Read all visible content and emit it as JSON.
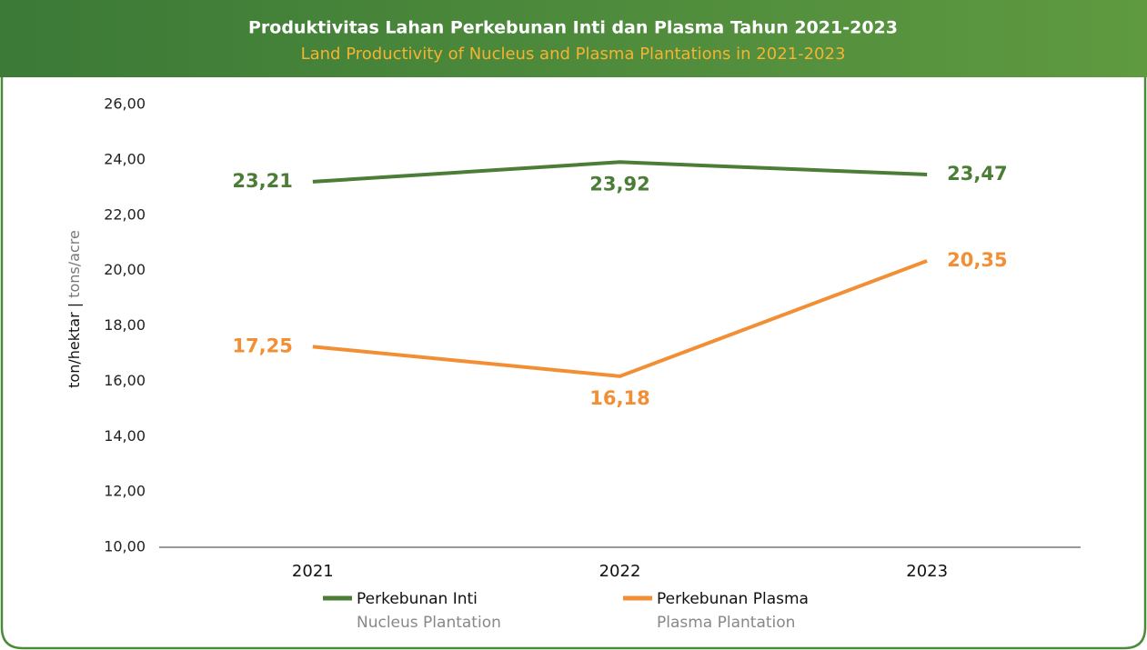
{
  "chart_data": {
    "type": "line",
    "title": "Produktivitas Lahan Perkebunan Inti dan Plasma Tahun 2021-2023",
    "subtitle": "Land Productivity of Nucleus and Plasma Plantations in 2021-2023",
    "y_label": "ton/hektar",
    "y_label_separator": "|",
    "y_label_en": "tons/acre",
    "categories": [
      "2021",
      "2022",
      "2023"
    ],
    "series": [
      {
        "name": "Perkebunan Inti",
        "name_en": "Nucleus Plantation",
        "color": "#4b7d36",
        "values": [
          23.21,
          23.92,
          23.47
        ],
        "value_labels": [
          "23,21",
          "23,92",
          "23,47"
        ]
      },
      {
        "name": "Perkebunan Plasma",
        "name_en": "Plasma Plantation",
        "color": "#f28f35",
        "values": [
          17.25,
          16.18,
          20.35
        ],
        "value_labels": [
          "17,25",
          "16,18",
          "20,35"
        ]
      }
    ],
    "ylim": [
      10,
      26
    ],
    "yticks": [
      {
        "value": 10,
        "label": "10,00"
      },
      {
        "value": 12,
        "label": "12,00"
      },
      {
        "value": 14,
        "label": "14,00"
      },
      {
        "value": 16,
        "label": "16,00"
      },
      {
        "value": 18,
        "label": "18,00"
      },
      {
        "value": 20,
        "label": "20,00"
      },
      {
        "value": 22,
        "label": "22,00"
      },
      {
        "value": 24,
        "label": "24,00"
      },
      {
        "value": 26,
        "label": "26,00"
      }
    ],
    "grid": false,
    "legend": "bottom"
  }
}
